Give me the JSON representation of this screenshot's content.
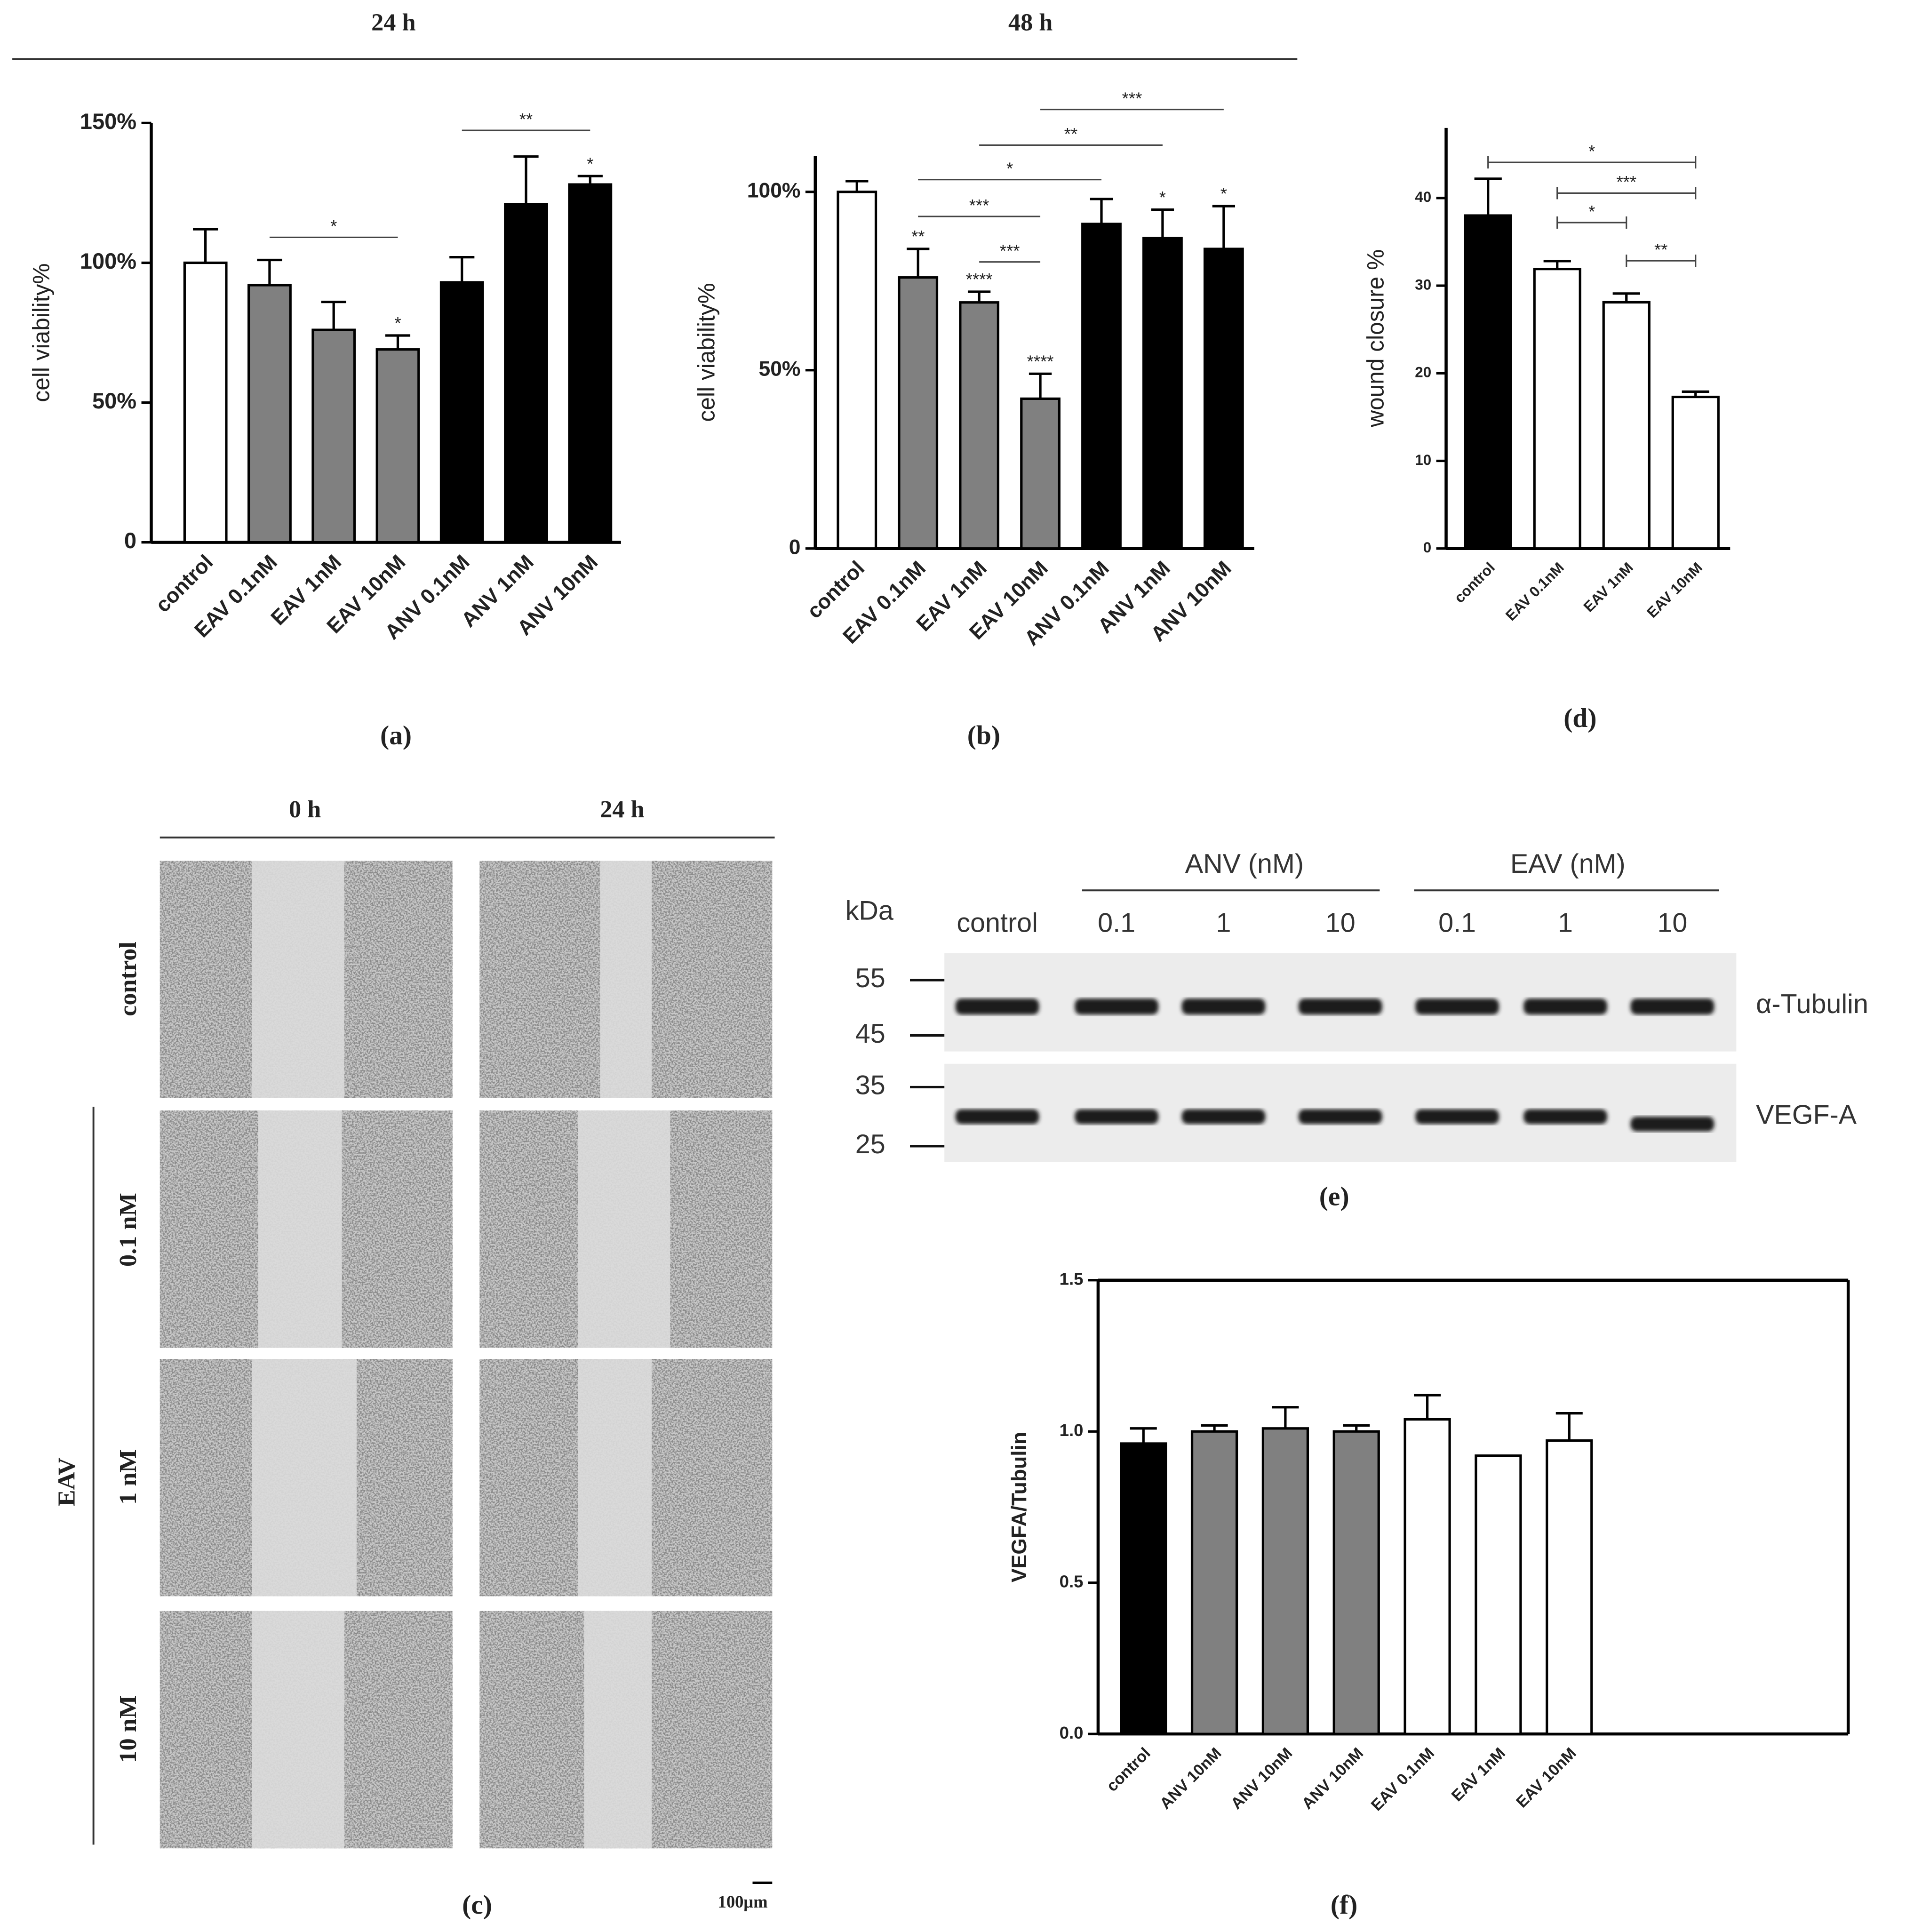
{
  "figure_headers": [
    "24 h",
    "48 h"
  ],
  "chart_data": [
    {
      "type": "bar",
      "panel": "(a)",
      "y_label": "cell viability%",
      "categories": [
        "control",
        "EAV 0.1nM",
        "EAV 1nM",
        "EAV 10nM",
        "ANV 0.1nM",
        "ANV 1nM",
        "ANV 10nM"
      ],
      "values": [
        100,
        92,
        76,
        69,
        93,
        121,
        128
      ],
      "errors": [
        12,
        9,
        10,
        5,
        9,
        17,
        3
      ],
      "colors": [
        "#ffffff",
        "#808080",
        "#808080",
        "#808080",
        "#000000",
        "#000000",
        "#000000"
      ],
      "significance": [
        null,
        null,
        null,
        "*",
        null,
        null,
        "*"
      ],
      "brackets": [
        {
          "label": "*",
          "categories": [
            "EAV 0.1nM",
            "EAV 10nM"
          ]
        },
        {
          "label": "**",
          "categories": [
            "ANV 0.1nM",
            "ANV 10nM"
          ]
        }
      ],
      "ylim": [
        0,
        150
      ],
      "yticks": [
        0,
        {
          "value": 50,
          "label": "50%"
        },
        {
          "value": 100,
          "label": "100%"
        },
        {
          "value": 150,
          "label": "150%"
        }
      ],
      "grid": false
    },
    {
      "type": "bar",
      "panel": "(b)",
      "y_label": "cell viability%",
      "categories": [
        "control",
        "EAV 0.1nM",
        "EAV 1nM",
        "EAV 10nM",
        "ANV 0.1nM",
        "ANV 1nM",
        "ANV 10nM"
      ],
      "values": [
        100,
        76,
        69,
        42,
        91,
        87,
        84
      ],
      "errors": [
        3,
        8,
        3,
        7,
        7,
        8,
        12
      ],
      "colors": [
        "#ffffff",
        "#808080",
        "#808080",
        "#808080",
        "#000000",
        "#000000",
        "#000000"
      ],
      "significance": [
        null,
        "**",
        "****",
        "****",
        null,
        "*",
        "*"
      ],
      "brackets": [
        {
          "label": "*",
          "categories": [
            "EAV 0.1nM",
            "ANV 0.1nM"
          ]
        },
        {
          "label": "***",
          "categories": [
            "EAV 0.1nM",
            "EAV 10nM"
          ]
        },
        {
          "label": "***",
          "categories": [
            "EAV 1nM",
            "EAV 10nM"
          ]
        },
        {
          "label": "**",
          "categories": [
            "EAV 1nM",
            "ANV 1nM"
          ]
        },
        {
          "label": "***",
          "categories": [
            "EAV 10nM",
            "ANV 10nM"
          ]
        }
      ],
      "ylim": [
        0,
        110
      ],
      "yticks": [
        0,
        {
          "value": 50,
          "label": "50%"
        },
        {
          "value": 100,
          "label": "100%"
        }
      ],
      "grid": false
    },
    {
      "type": "bar",
      "panel": "(d)",
      "y_label": "wound closure  %",
      "categories": [
        "control",
        "EAV 0.1nM",
        "EAV 1nM",
        "EAV 10nM"
      ],
      "values": [
        38,
        31.9,
        28.1,
        17.3
      ],
      "errors": [
        4.2,
        0.9,
        1,
        0.6
      ],
      "colors": [
        "#000000",
        "#ffffff",
        "#ffffff",
        "#ffffff"
      ],
      "significance": [
        null,
        null,
        null,
        null
      ],
      "brackets": [
        {
          "label": "*",
          "categories": [
            "control",
            "EAV 10nM"
          ]
        },
        {
          "label": "***",
          "categories": [
            "EAV 0.1nM",
            "EAV 10nM"
          ]
        },
        {
          "label": "*",
          "categories": [
            "EAV 0.1nM",
            "EAV 1nM"
          ]
        },
        {
          "label": "**",
          "categories": [
            "EAV 1nM",
            "EAV 10nM"
          ]
        }
      ],
      "ylim": [
        0,
        48
      ],
      "yticks": [
        0,
        10,
        20,
        30,
        40
      ],
      "grid": false
    },
    {
      "type": "bar",
      "panel": "(f)",
      "y_label": "VEGFA/Tubulin",
      "categories": [
        "control",
        "ANV 10nM",
        "ANV 10nM",
        "ANV 10nM",
        "EAV 0.1nM",
        "EAV 1nM",
        "EAV 10nM"
      ],
      "values": [
        0.96,
        1.0,
        1.01,
        1.0,
        1.04,
        0.92,
        0.97
      ],
      "errors": [
        0.05,
        0.02,
        0.07,
        0.02,
        0.08,
        null,
        0.09
      ],
      "colors": [
        "#000000",
        "#808080",
        "#808080",
        "#808080",
        "#ffffff",
        "#ffffff",
        "#ffffff"
      ],
      "significance": [
        null,
        null,
        null,
        null,
        null,
        null,
        null
      ],
      "brackets": [],
      "ylim": [
        0,
        1.5
      ],
      "yticks": [
        {
          "value": 0,
          "label": "0.0"
        },
        0.5,
        {
          "value": 1,
          "label": "1.0"
        },
        1.5
      ],
      "grid": false
    }
  ],
  "panel_c": {
    "columns": [
      "0 h",
      "24 h"
    ],
    "rows": [
      "control",
      "0.1 nM",
      "1 nM",
      "10 nM"
    ],
    "group": "EAV",
    "scale": "100μm",
    "panel": "(c)"
  },
  "panel_e": {
    "groups": [
      "ANV (nM)",
      "EAV (nM)"
    ],
    "unit": "kDa",
    "lanes": [
      "control",
      "0.1",
      "1",
      "10",
      "0.1",
      "1",
      "10"
    ],
    "markers": [
      "55",
      "45",
      "35",
      "25"
    ],
    "bands": [
      "α-Tubulin",
      "VEGF-A"
    ],
    "panel": "(e)"
  }
}
